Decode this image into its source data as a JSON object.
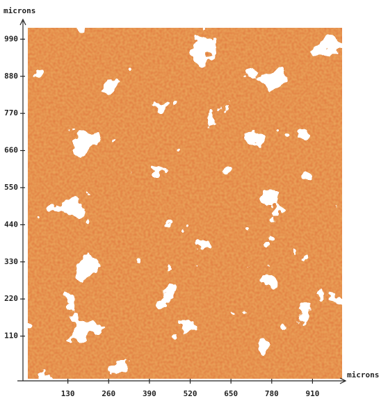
{
  "chart_data": {
    "type": "image",
    "x_label": "microns",
    "y_label": "microns",
    "xlim": [
      0,
      1000
    ],
    "ylim": [
      0,
      1000
    ],
    "xticks": [
      130,
      260,
      390,
      520,
      650,
      780,
      910
    ],
    "yticks": [
      110,
      220,
      330,
      440,
      550,
      660,
      770,
      880,
      990
    ],
    "color": "#e0733a"
  }
}
